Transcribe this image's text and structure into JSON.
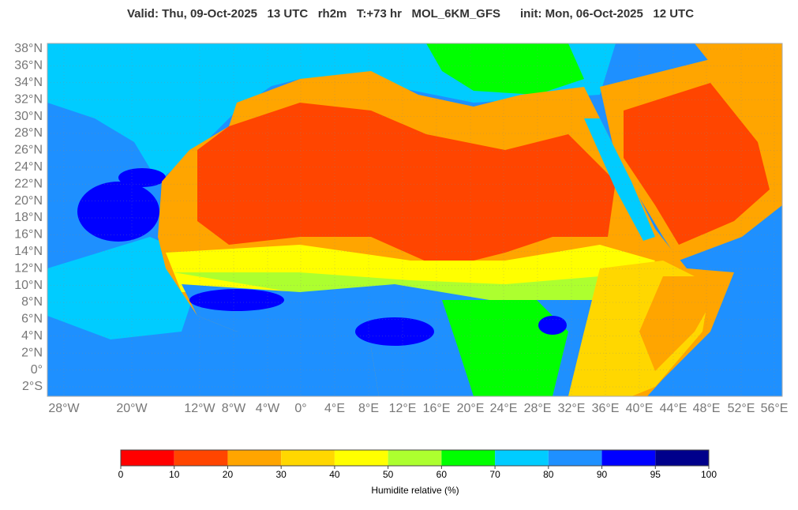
{
  "header": {
    "title": "Valid: Thu, 09-Oct-2025   13 UTC   rh2m   T:+73 hr   MOL_6KM_GFS      init: Mon, 06-Oct-2025   12 UTC"
  },
  "map": {
    "lat_labels": [
      "38°N",
      "36°N",
      "34°N",
      "32°N",
      "30°N",
      "28°N",
      "26°N",
      "24°N",
      "22°N",
      "20°N",
      "18°N",
      "16°N",
      "14°N",
      "12°N",
      "10°N",
      "8°N",
      "6°N",
      "4°N",
      "2°N",
      "0°",
      "2°S"
    ],
    "lon_labels": [
      "28°W",
      "20°W",
      "12°W",
      "8°W",
      "4°W",
      "0°",
      "4°E",
      "8°E",
      "12°E",
      "16°E",
      "20°E",
      "24°E",
      "28°E",
      "32°E",
      "36°E",
      "40°E",
      "44°E",
      "48°E",
      "52°E",
      "56°E"
    ]
  },
  "colorbar": {
    "bounds": [
      0,
      10,
      20,
      30,
      40,
      50,
      60,
      70,
      80,
      90,
      95,
      100
    ],
    "colors": [
      "#ff0000",
      "#ff4500",
      "#ffa500",
      "#ffd700",
      "#ffff00",
      "#adff2f",
      "#00ff00",
      "#00ccff",
      "#1e90ff",
      "#0000ff",
      "#00008b"
    ],
    "label": "Humidite relative (%)"
  }
}
